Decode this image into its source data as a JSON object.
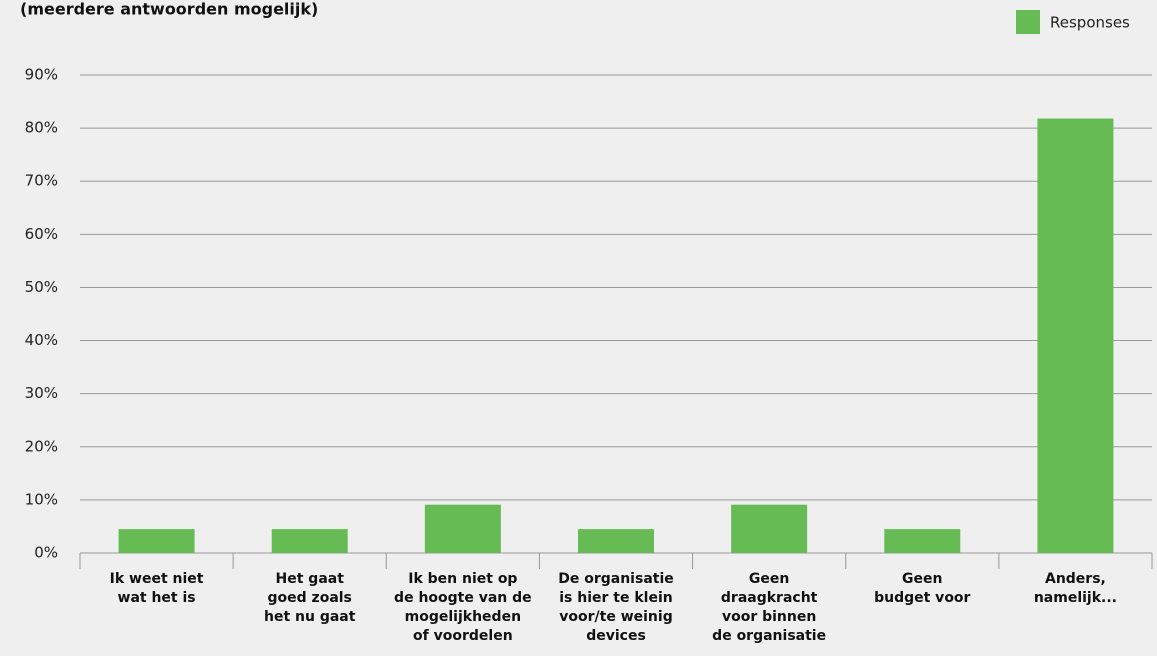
{
  "chart_data": {
    "type": "bar",
    "title": "(meerdere antwoorden mogelijk)",
    "categories": [
      [
        "Ik weet niet",
        "wat het is"
      ],
      [
        "Het gaat",
        "goed zoals",
        "het nu gaat"
      ],
      [
        "Ik ben niet op",
        "de hoogte van de",
        "mogelijkheden",
        "of voordelen"
      ],
      [
        "De organisatie",
        "is hier te klein",
        "voor/te weinig",
        "devices"
      ],
      [
        "Geen",
        "draagkracht",
        "voor binnen",
        "de organisatie"
      ],
      [
        "Geen",
        "budget voor"
      ],
      [
        "Anders,",
        "namelijk..."
      ]
    ],
    "series": [
      {
        "name": "Responses",
        "color": "#66bb55",
        "values": [
          4.5,
          4.5,
          9.1,
          4.5,
          9.1,
          4.5,
          81.8
        ]
      }
    ],
    "ylim": [
      0,
      90
    ],
    "yticks": [
      {
        "value": 0,
        "label": "0%"
      },
      {
        "value": 10,
        "label": "10%"
      },
      {
        "value": 20,
        "label": "20%"
      },
      {
        "value": 30,
        "label": "30%"
      },
      {
        "value": 40,
        "label": "40%"
      },
      {
        "value": 50,
        "label": "50%"
      },
      {
        "value": 60,
        "label": "60%"
      },
      {
        "value": 70,
        "label": "70%"
      },
      {
        "value": 80,
        "label": "80%"
      },
      {
        "value": 90,
        "label": "90%"
      }
    ],
    "grid": true,
    "legend": "top-right"
  }
}
